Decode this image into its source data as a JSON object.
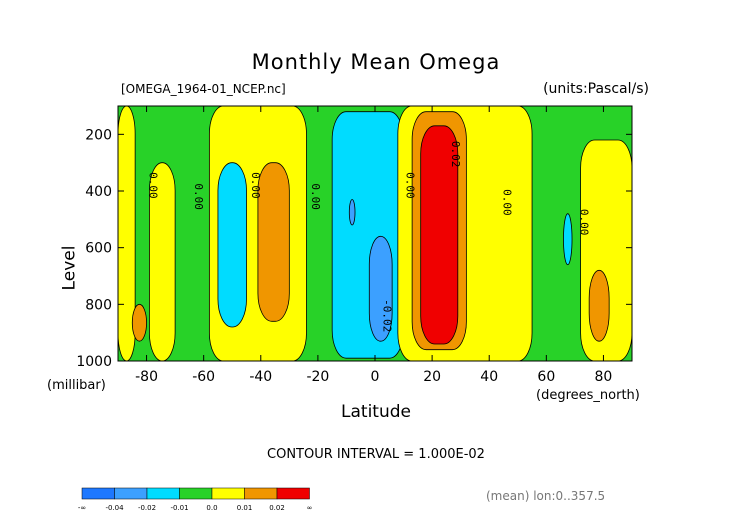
{
  "title": "Monthly Mean Omega",
  "file_label": "[OMEGA_1964-01_NCEP.nc]",
  "units_label": "(units:Pascal/s)",
  "contour_interval": "CONTOUR INTERVAL = 1.000E-02",
  "mean_label": "(mean) lon:0..357.5",
  "colors": {
    "lt_neg_003": "#1e78ff",
    "neg_003_002": "#3ca0ff",
    "neg_002_001": "#00dcff",
    "near_zero_neg": "#28d228",
    "near_zero_pos": "#ffff00",
    "pos_001_002": "#f09600",
    "pos_002_plus": "#f00000"
  },
  "chart_data": {
    "type": "heatmap",
    "title": "Monthly Mean Omega",
    "xlabel": "Latitude",
    "x_unit": "(degrees_north)",
    "ylabel": "Level",
    "y_unit": "(millibar)",
    "xlim": [
      -90,
      90
    ],
    "ylim": [
      1000,
      100
    ],
    "x_ticks": [
      "-80",
      "-60",
      "-40",
      "-20",
      "0",
      "20",
      "40",
      "60",
      "80"
    ],
    "x_tick_values": [
      -80,
      -60,
      -40,
      -20,
      0,
      20,
      40,
      60,
      80
    ],
    "y_ticks": [
      "200",
      "400",
      "600",
      "800",
      "1000"
    ],
    "y_tick_values": [
      200,
      400,
      600,
      800,
      1000
    ],
    "contour_labels": [
      {
        "text": "0.00",
        "x": -79,
        "y": 380
      },
      {
        "text": "0.00",
        "x": -63,
        "y": 420
      },
      {
        "text": "0.00",
        "x": -43,
        "y": 380
      },
      {
        "text": "0.00",
        "x": -22,
        "y": 420
      },
      {
        "text": "0.00",
        "x": 11,
        "y": 380
      },
      {
        "text": "0.02",
        "x": 27,
        "y": 270
      },
      {
        "text": "0.00",
        "x": 45,
        "y": 440
      },
      {
        "text": "0.00",
        "x": 72,
        "y": 510
      },
      {
        "text": "-0.02",
        "x": 3,
        "y": 840
      }
    ],
    "colorbar": {
      "labels": [
        "-∞",
        "-0.04",
        "-0.02",
        "-0.01",
        "0.0",
        "0.01",
        "0.02",
        "∞"
      ],
      "bins": [
        "#1e78ff",
        "#3ca0ff",
        "#00dcff",
        "#28d228",
        "#ffff00",
        "#f09600",
        "#f00000"
      ]
    },
    "regions": [
      {
        "level": "near_zero_pos",
        "lat": [
          -90,
          -84
        ],
        "p": [
          100,
          1000
        ]
      },
      {
        "level": "near_zero_pos",
        "lat": [
          -79,
          -70
        ],
        "p": [
          300,
          1000
        ]
      },
      {
        "level": "near_zero_pos",
        "lat": [
          -58,
          -24
        ],
        "p": [
          100,
          1000
        ]
      },
      {
        "level": "pos_001_002",
        "lat": [
          -41,
          -30
        ],
        "p": [
          300,
          860
        ]
      },
      {
        "level": "pos_001_002",
        "lat": [
          -85,
          -80
        ],
        "p": [
          800,
          930
        ]
      },
      {
        "level": "neg_002_001",
        "lat": [
          -55,
          -45
        ],
        "p": [
          300,
          880
        ]
      },
      {
        "level": "neg_002_001",
        "lat": [
          -15,
          10
        ],
        "p": [
          120,
          990
        ]
      },
      {
        "level": "neg_003_002",
        "lat": [
          -2,
          6
        ],
        "p": [
          560,
          930
        ]
      },
      {
        "level": "neg_003_002",
        "lat": [
          -9,
          -7
        ],
        "p": [
          430,
          520
        ]
      },
      {
        "level": "near_zero_pos",
        "lat": [
          8,
          55
        ],
        "p": [
          100,
          1000
        ]
      },
      {
        "level": "pos_001_002",
        "lat": [
          13,
          32
        ],
        "p": [
          120,
          960
        ]
      },
      {
        "level": "pos_002_plus",
        "lat": [
          16,
          29
        ],
        "p": [
          170,
          940
        ]
      },
      {
        "level": "near_zero_pos",
        "lat": [
          72,
          90
        ],
        "p": [
          220,
          1000
        ]
      },
      {
        "level": "pos_001_002",
        "lat": [
          75,
          82
        ],
        "p": [
          680,
          930
        ]
      },
      {
        "level": "neg_002_001",
        "lat": [
          66,
          69
        ],
        "p": [
          480,
          660
        ]
      }
    ]
  }
}
